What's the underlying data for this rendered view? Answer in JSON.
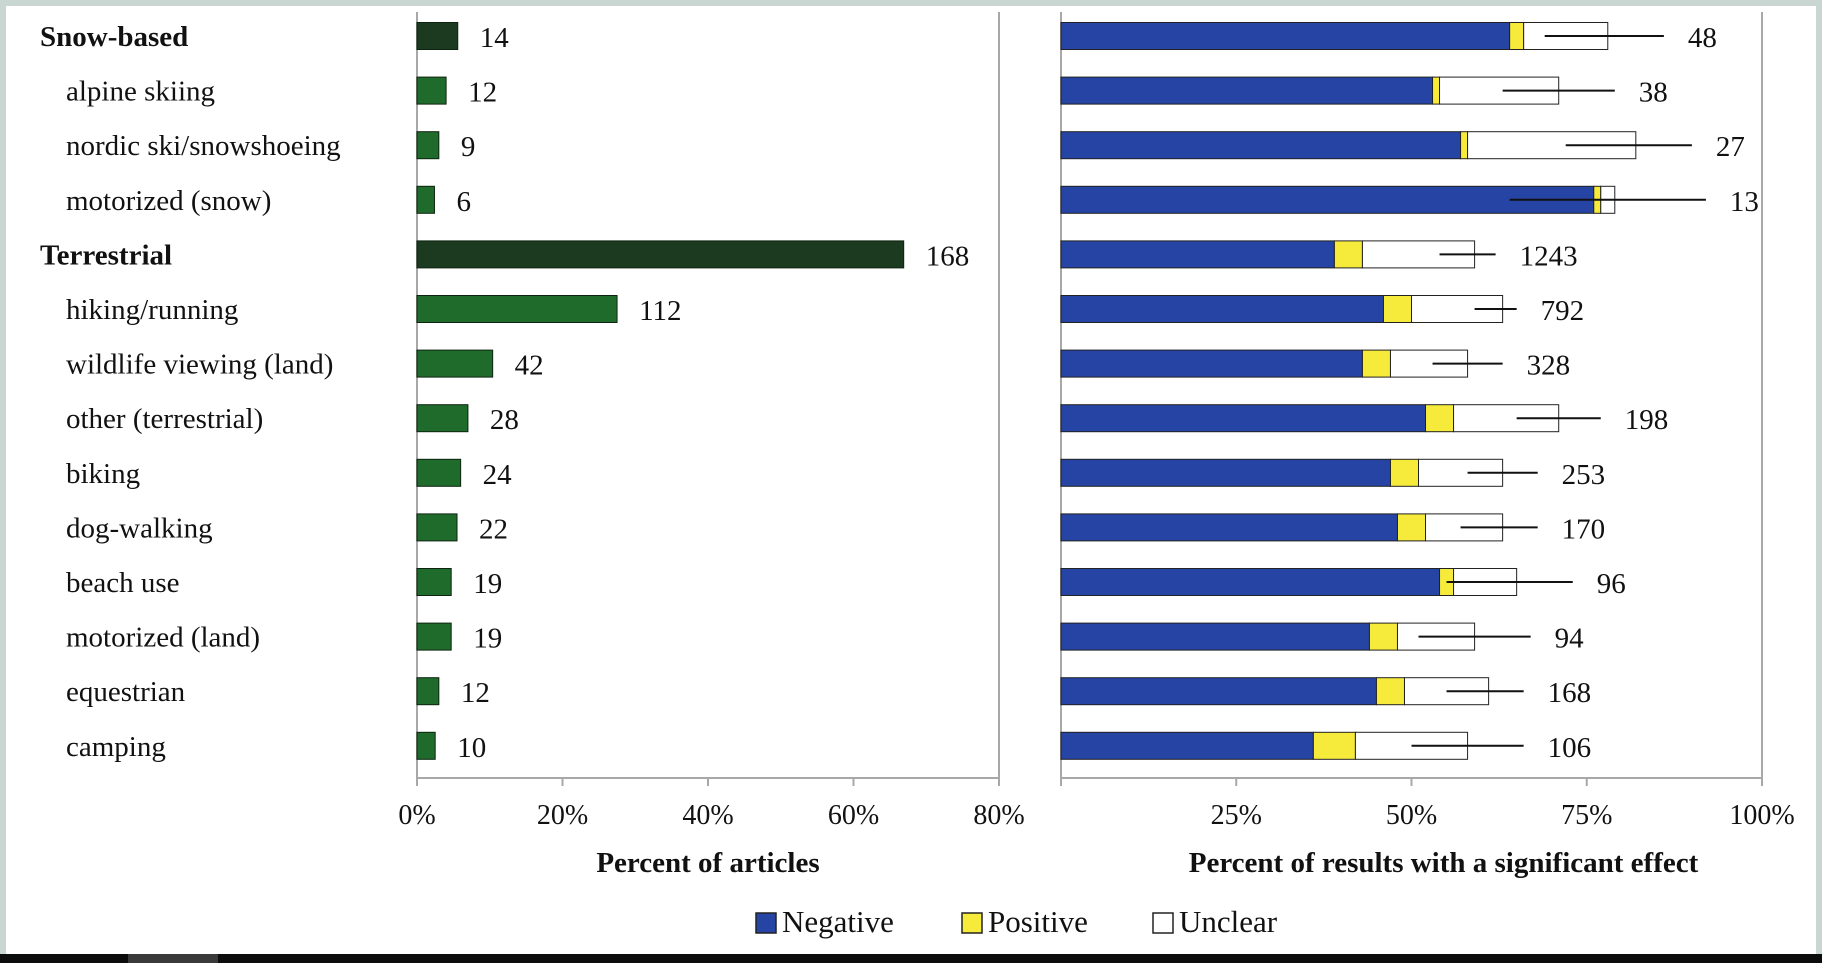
{
  "chart_data": [
    {
      "type": "bar",
      "orientation": "horizontal",
      "categories": [
        "Snow-based",
        "alpine skiing",
        "nordic ski/snowshoeing",
        "motorized (snow)",
        "Terrestrial",
        "hiking/running",
        "wildlife viewing (land)",
        "other (terrestrial)",
        "biking",
        "dog-walking",
        "beach use",
        "motorized (land)",
        "equestrian",
        "camping"
      ],
      "group_headers": [
        "Snow-based",
        "Terrestrial"
      ],
      "values": [
        5.6,
        4.0,
        3.0,
        2.4,
        66.9,
        27.5,
        10.4,
        7.0,
        6.0,
        5.5,
        4.7,
        4.7,
        3.0,
        2.5
      ],
      "data_labels": [
        "14",
        "12",
        "9",
        "6",
        "168",
        "112",
        "42",
        "28",
        "24",
        "22",
        "19",
        "19",
        "12",
        "10"
      ],
      "xlabel": "Percent of articles",
      "xlim": [
        0,
        80
      ],
      "xticks": [
        "0%",
        "20%",
        "40%",
        "60%",
        "80%"
      ],
      "colors": {
        "group": "#1b3a20",
        "item": "#1f6b2c"
      }
    },
    {
      "type": "bar",
      "orientation": "horizontal",
      "stacked": true,
      "categories": [
        "Snow-based",
        "alpine skiing",
        "nordic ski/snowshoeing",
        "motorized (snow)",
        "Terrestrial",
        "hiking/running",
        "wildlife viewing (land)",
        "other (terrestrial)",
        "biking",
        "dog-walking",
        "beach use",
        "motorized (land)",
        "equestrian",
        "camping"
      ],
      "series": [
        {
          "name": "Negative",
          "color": "#2644a4",
          "values": [
            64,
            53,
            57,
            76,
            39,
            46,
            43,
            52,
            47,
            48,
            54,
            44,
            45,
            36
          ]
        },
        {
          "name": "Positive",
          "color": "#f6ea3a",
          "values": [
            2,
            1,
            1,
            1,
            4,
            4,
            4,
            4,
            4,
            4,
            2,
            4,
            4,
            6
          ]
        },
        {
          "name": "Unclear",
          "color": "#ffffff",
          "values": [
            12,
            17,
            24,
            2,
            16,
            13,
            11,
            15,
            12,
            11,
            9,
            11,
            12,
            16
          ]
        }
      ],
      "error_bars": [
        [
          69,
          86
        ],
        [
          63,
          79
        ],
        [
          72,
          90
        ],
        [
          64,
          92
        ],
        [
          54,
          62
        ],
        [
          59,
          65
        ],
        [
          53,
          63
        ],
        [
          65,
          77
        ],
        [
          58,
          68
        ],
        [
          57,
          68
        ],
        [
          55,
          73
        ],
        [
          51,
          67
        ],
        [
          55,
          66
        ],
        [
          50,
          66
        ]
      ],
      "data_labels": [
        "48",
        "38",
        "27",
        "13",
        "1243",
        "792",
        "328",
        "198",
        "253",
        "170",
        "96",
        "94",
        "168",
        "106"
      ],
      "xlabel": "Percent of results with a significant effect",
      "xlim": [
        0,
        100
      ],
      "xticks": [
        "25%",
        "50%",
        "75%",
        "100%"
      ],
      "legend_position": "bottom"
    }
  ]
}
